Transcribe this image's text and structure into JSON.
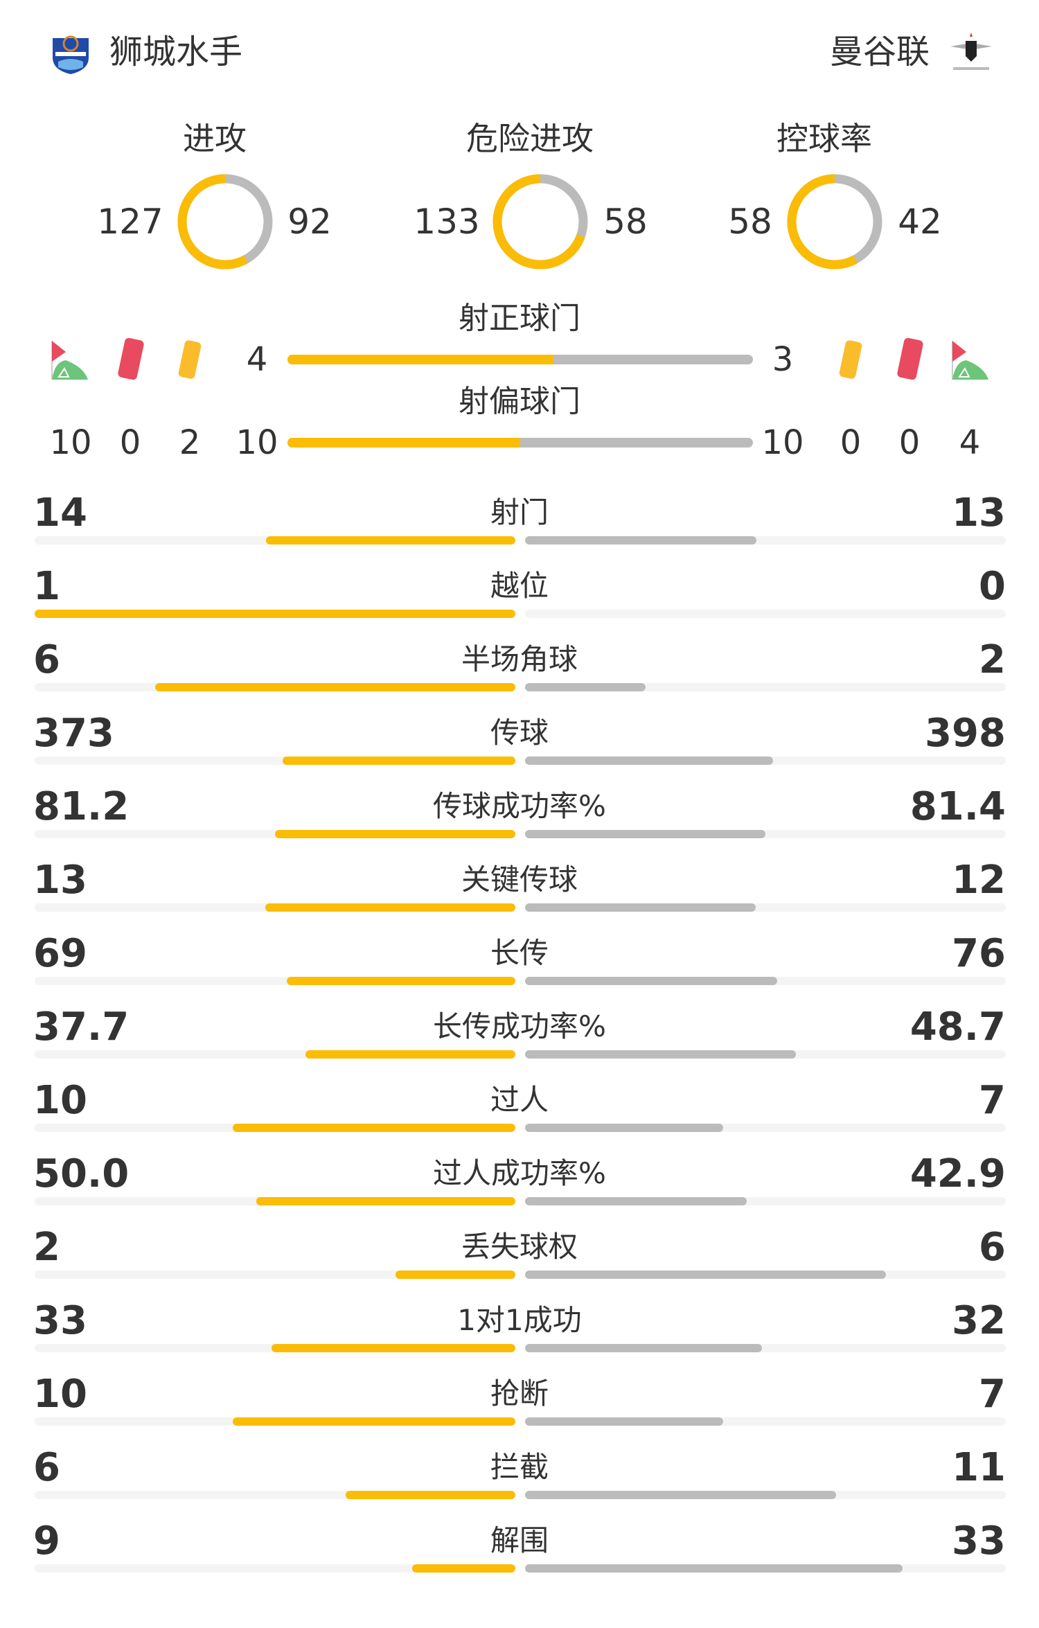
{
  "home": {
    "name": "狮城水手",
    "logo_text": "LION CITY SAILORS",
    "logo_color": "#1f4aa8"
  },
  "away": {
    "name": "曼谷联",
    "logo_text": "BANGKOK UNITED",
    "logo_color": "#222222"
  },
  "colors": {
    "home": "#fbbc05",
    "away": "#bbbbbb",
    "track": "#f4f4f4",
    "red_card": "#e84a5f",
    "yellow_card": "#fbbc2c",
    "corner_flag": "#6cc57a"
  },
  "donuts": [
    {
      "title": "进攻",
      "home": 127,
      "away": 92
    },
    {
      "title": "危险进攻",
      "home": 133,
      "away": 58
    },
    {
      "title": "控球率",
      "home": 58,
      "away": 42
    }
  ],
  "shots_on": {
    "title": "射正球门",
    "home": 4,
    "away": 3
  },
  "shots_off": {
    "title": "射偏球门",
    "home": 10,
    "away": 10
  },
  "side_counts": {
    "home": {
      "corners": 10,
      "red_cards": 0,
      "yellow_cards": 2
    },
    "away": {
      "yellow_cards": 0,
      "red_cards": 0,
      "corners": 4
    }
  },
  "icons": {
    "corner": "corner-flag-icon",
    "red": "red-card-icon",
    "yellow": "yellow-card-icon"
  },
  "stats": [
    {
      "label": "射门",
      "home": "14",
      "away": "13"
    },
    {
      "label": "越位",
      "home": "1",
      "away": "0"
    },
    {
      "label": "半场角球",
      "home": "6",
      "away": "2"
    },
    {
      "label": "传球",
      "home": "373",
      "away": "398"
    },
    {
      "label": "传球成功率%",
      "home": "81.2",
      "away": "81.4"
    },
    {
      "label": "关键传球",
      "home": "13",
      "away": "12"
    },
    {
      "label": "长传",
      "home": "69",
      "away": "76"
    },
    {
      "label": "长传成功率%",
      "home": "37.7",
      "away": "48.7"
    },
    {
      "label": "过人",
      "home": "10",
      "away": "7"
    },
    {
      "label": "过人成功率%",
      "home": "50.0",
      "away": "42.9"
    },
    {
      "label": "丢失球权",
      "home": "2",
      "away": "6"
    },
    {
      "label": "1对1成功",
      "home": "33",
      "away": "32"
    },
    {
      "label": "抢断",
      "home": "10",
      "away": "7"
    },
    {
      "label": "拦截",
      "home": "6",
      "away": "11"
    },
    {
      "label": "解围",
      "home": "9",
      "away": "33"
    }
  ]
}
